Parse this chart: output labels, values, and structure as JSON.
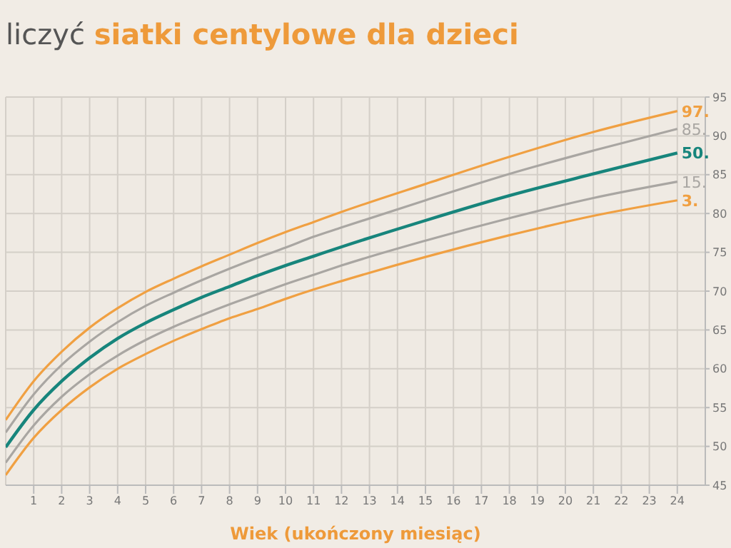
{
  "chart_data": {
    "type": "line",
    "title": "liczyć siatki centylowe dla dzieci",
    "xlabel": "Wiek (ukończony miesiąc)",
    "x": [
      0,
      1,
      2,
      3,
      4,
      5,
      6,
      7,
      8,
      9,
      10,
      11,
      12,
      15,
      18,
      21,
      24
    ],
    "series": [
      {
        "name": "97.",
        "color": "#f0a042",
        "values": [
          53.4,
          58.4,
          62.2,
          65.3,
          67.8,
          69.9,
          71.6,
          73.2,
          74.7,
          76.2,
          77.6,
          78.9,
          80.2,
          83.8,
          87.3,
          90.5,
          93.2
        ]
      },
      {
        "name": "85.",
        "color": "#a9a6a2",
        "values": [
          51.8,
          56.7,
          60.5,
          63.5,
          66.0,
          68.1,
          69.8,
          71.4,
          72.9,
          74.3,
          75.6,
          77.0,
          78.2,
          81.7,
          85.1,
          88.1,
          90.9
        ]
      },
      {
        "name": "50.",
        "color": "#17857c",
        "values": [
          49.9,
          54.7,
          58.4,
          61.4,
          63.9,
          65.9,
          67.6,
          69.2,
          70.6,
          72.0,
          73.3,
          74.5,
          75.7,
          79.1,
          82.3,
          85.1,
          87.8
        ]
      },
      {
        "name": "15.",
        "color": "#a9a6a2",
        "values": [
          47.9,
          52.7,
          56.4,
          59.3,
          61.7,
          63.7,
          65.4,
          66.9,
          68.3,
          69.6,
          70.9,
          72.1,
          73.3,
          76.5,
          79.4,
          82.0,
          84.1
        ]
      },
      {
        "name": "3.",
        "color": "#f0a042",
        "values": [
          46.3,
          51.1,
          54.7,
          57.6,
          60.0,
          61.9,
          63.6,
          65.1,
          66.5,
          67.7,
          69.0,
          70.2,
          71.3,
          74.4,
          77.2,
          79.7,
          81.7
        ]
      }
    ],
    "xlim": [
      0,
      25
    ],
    "xticks": [
      1,
      2,
      3,
      4,
      5,
      6,
      7,
      8,
      9,
      10,
      11,
      12,
      13,
      14,
      15,
      16,
      17,
      18,
      19,
      20,
      21,
      22,
      23,
      24
    ],
    "ylim": [
      45,
      95
    ],
    "yticks": [
      45,
      50,
      55,
      60,
      65,
      70,
      75,
      80,
      85,
      90,
      95
    ],
    "grid": true,
    "legend": false,
    "marker": "none",
    "line_style": "solid"
  }
}
